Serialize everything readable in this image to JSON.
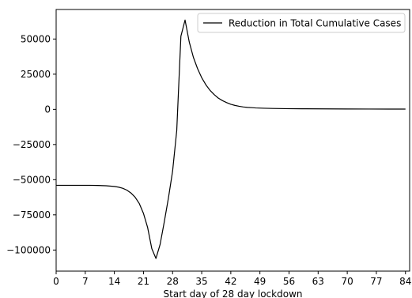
{
  "chart_data": {
    "type": "line",
    "title": "",
    "xlabel": "Start day of 28 day lockdown",
    "ylabel": "",
    "xlim": [
      0,
      85
    ],
    "ylim": [
      -115000,
      71000
    ],
    "grid": false,
    "legend_placement": "top-right",
    "x_ticks": [
      0,
      7,
      14,
      21,
      28,
      35,
      42,
      49,
      56,
      63,
      70,
      77,
      84
    ],
    "x_tick_labels": [
      "0",
      "7",
      "14",
      "21",
      "28",
      "35",
      "42",
      "49",
      "56",
      "63",
      "70",
      "77",
      "84"
    ],
    "y_ticks": [
      -100000,
      -75000,
      -50000,
      -25000,
      0,
      25000,
      50000
    ],
    "y_tick_labels": [
      "−100000",
      "−75000",
      "−50000",
      "−25000",
      "0",
      "25000",
      "50000"
    ],
    "series": [
      {
        "name": "Reduction in Total Cumulative Cases",
        "color": "#000000",
        "x": [
          0,
          2,
          4,
          6,
          8,
          10,
          12,
          14,
          15,
          16,
          17,
          18,
          19,
          20,
          21,
          22,
          23,
          24,
          25,
          26,
          27,
          28,
          29,
          30,
          31,
          32,
          33,
          34,
          35,
          36,
          37,
          38,
          39,
          40,
          41,
          42,
          43,
          44,
          45,
          46,
          47,
          48,
          50,
          52,
          55,
          60,
          65,
          70,
          75,
          80,
          84
        ],
        "y": [
          -54000,
          -54000,
          -54000,
          -54000,
          -54000,
          -54100,
          -54300,
          -54800,
          -55300,
          -56100,
          -57400,
          -59500,
          -62500,
          -67000,
          -74000,
          -84000,
          -99000,
          -106000,
          -96000,
          -80000,
          -63000,
          -44000,
          -15000,
          52000,
          63500,
          48000,
          37000,
          29000,
          22500,
          17500,
          13500,
          10500,
          8000,
          6200,
          4800,
          3600,
          2800,
          2200,
          1700,
          1400,
          1200,
          1000,
          800,
          650,
          500,
          400,
          330,
          280,
          240,
          210,
          200
        ]
      }
    ]
  }
}
